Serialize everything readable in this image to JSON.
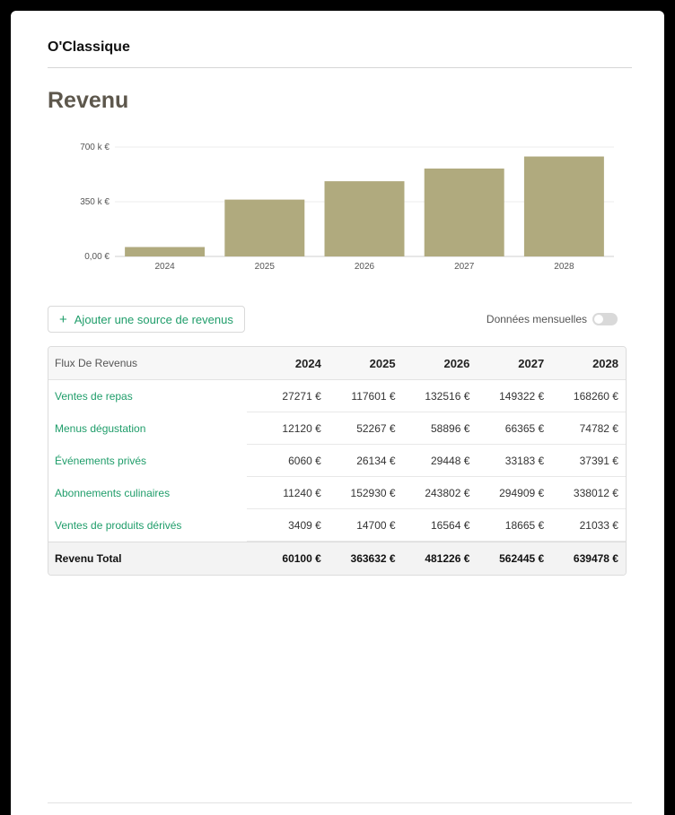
{
  "brand": "O'Classique",
  "page_title": "Revenu",
  "chart_data": {
    "type": "bar",
    "categories": [
      "2024",
      "2025",
      "2026",
      "2027",
      "2028"
    ],
    "values": [
      60100,
      363632,
      481226,
      562445,
      639478
    ],
    "ylim": [
      0,
      700000
    ],
    "yticks": [
      {
        "value": 0,
        "label": "0,00 €"
      },
      {
        "value": 350000,
        "label": "350 k €"
      },
      {
        "value": 700000,
        "label": "700 k €"
      }
    ],
    "bar_color": "#b0aa7e",
    "grid": true
  },
  "add_button_label": "Ajouter une source de revenus",
  "toggle_label": "Données mensuelles",
  "toggle_on": false,
  "table": {
    "header_label": "Flux De Revenus",
    "years": [
      "2024",
      "2025",
      "2026",
      "2027",
      "2028"
    ],
    "rows": [
      {
        "name": "Ventes de repas",
        "values": [
          "27271 €",
          "117601 €",
          "132516 €",
          "149322 €",
          "168260 €"
        ]
      },
      {
        "name": "Menus dégustation",
        "values": [
          "12120 €",
          "52267 €",
          "58896 €",
          "66365 €",
          "74782 €"
        ]
      },
      {
        "name": "Événements privés",
        "values": [
          "6060 €",
          "26134 €",
          "29448 €",
          "33183 €",
          "37391 €"
        ]
      },
      {
        "name": "Abonnements culinaires",
        "values": [
          "11240 €",
          "152930 €",
          "243802 €",
          "294909 €",
          "338012 €"
        ]
      },
      {
        "name": "Ventes de produits dérivés",
        "values": [
          "3409 €",
          "14700 €",
          "16564 €",
          "18665 €",
          "21033 €"
        ]
      }
    ],
    "total": {
      "name": "Revenu Total",
      "values": [
        "60100 €",
        "363632 €",
        "481226 €",
        "562445 €",
        "639478 €"
      ]
    }
  },
  "colors": {
    "accent": "#1f9d6a",
    "bar": "#b0aa7e",
    "title": "#5d574c"
  }
}
